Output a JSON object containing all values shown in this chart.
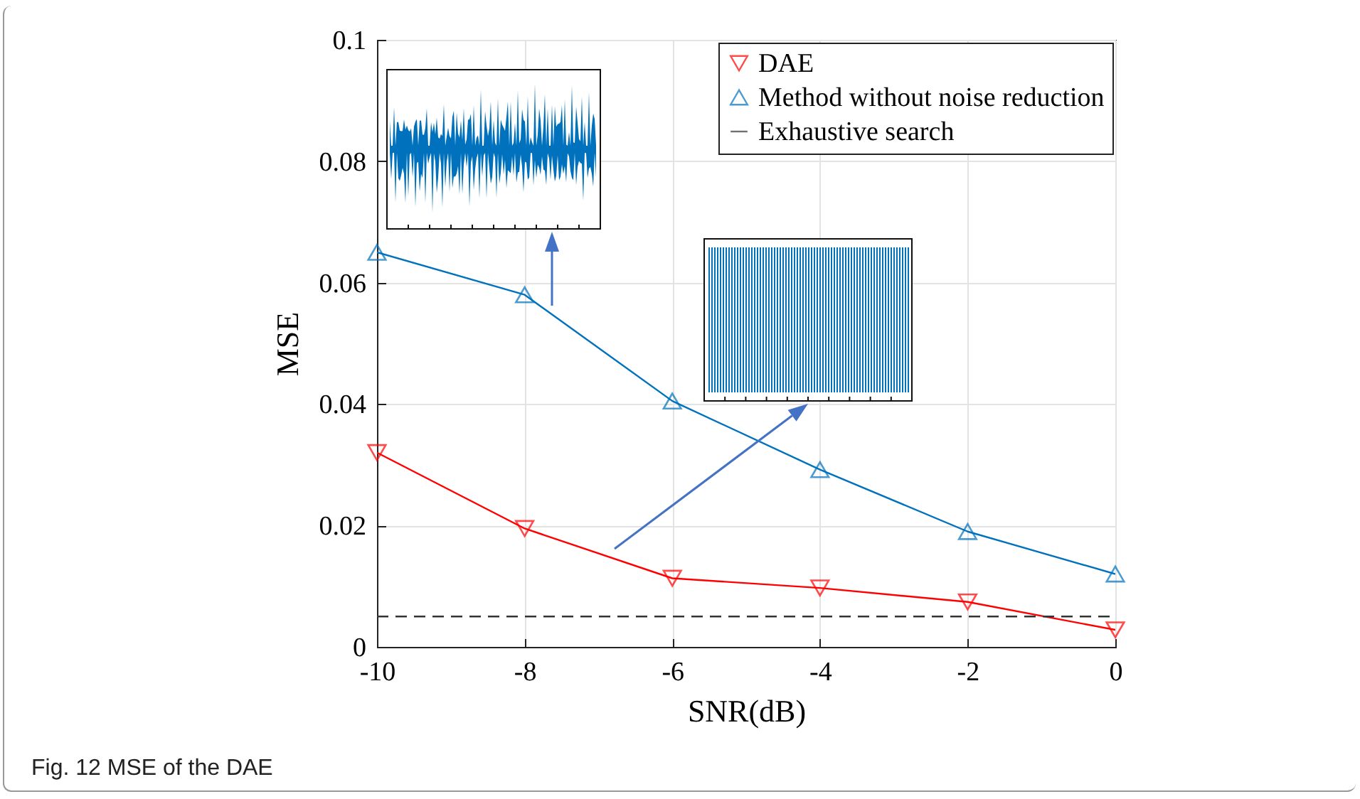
{
  "chart_data": {
    "type": "line",
    "xlabel": "SNR(dB)",
    "ylabel": "MSE",
    "x": [
      -10,
      -8,
      -6,
      -4,
      -2,
      0
    ],
    "series": [
      {
        "name": "DAE",
        "color": "#ff0000",
        "marker": "triangle-down",
        "values": [
          0.032,
          0.0195,
          0.0113,
          0.0097,
          0.0074,
          0.0028
        ]
      },
      {
        "name": "Method without noise reduction",
        "color": "#0072bd",
        "marker": "triangle",
        "values": [
          0.065,
          0.058,
          0.0405,
          0.0292,
          0.019,
          0.012
        ]
      },
      {
        "name": "Exhaustive search",
        "color": "#333333",
        "marker": "none",
        "line_style": "dashed",
        "values": [
          0.005,
          0.005,
          0.005,
          0.005,
          0.005,
          0.005
        ]
      }
    ],
    "xlim": [
      -10,
      0
    ],
    "xticks": [
      -10,
      -8,
      -6,
      -4,
      -2,
      0
    ],
    "ylim": [
      0,
      0.1
    ],
    "yticks": [
      0,
      0.02,
      0.04,
      0.06,
      0.08,
      0.1
    ],
    "grid": true,
    "legend": "top right",
    "annotations": [
      "Fig. 12 MSE of the DAE"
    ]
  }
}
